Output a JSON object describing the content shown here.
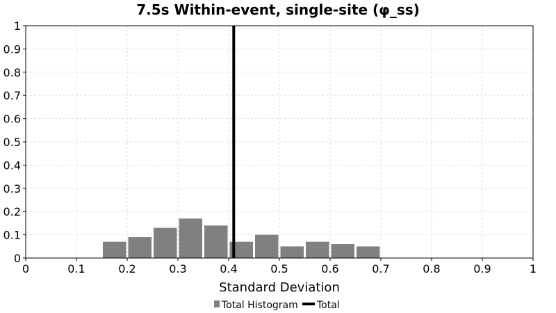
{
  "chart_data": {
    "type": "bar",
    "title": "7.5s Within-event, single-site (φ_ss)",
    "xlabel": "Standard Deviation",
    "ylabel": "",
    "xlim": [
      0,
      1
    ],
    "ylim": [
      0,
      1
    ],
    "xticks": [
      "0",
      "0.1",
      "0.2",
      "0.3",
      "0.4",
      "0.5",
      "0.6",
      "0.7",
      "0.8",
      "0.9",
      "1"
    ],
    "yticks": [
      "0",
      "0.1",
      "0.2",
      "0.3",
      "0.4",
      "0.5",
      "0.6",
      "0.7",
      "0.8",
      "0.9",
      "1"
    ],
    "grid": true,
    "legend_position": "bottom",
    "series": [
      {
        "name": "Total Histogram",
        "kind": "histogram",
        "color": "#808080",
        "bin_width": 0.05,
        "bin_centers": [
          0.175,
          0.225,
          0.275,
          0.325,
          0.375,
          0.425,
          0.475,
          0.525,
          0.575,
          0.625,
          0.675
        ],
        "values": [
          0.07,
          0.09,
          0.13,
          0.17,
          0.14,
          0.07,
          0.1,
          0.05,
          0.07,
          0.06,
          0.05
        ]
      },
      {
        "name": "Total",
        "kind": "vertical-line",
        "color": "#000000",
        "x": 0.41
      }
    ]
  }
}
